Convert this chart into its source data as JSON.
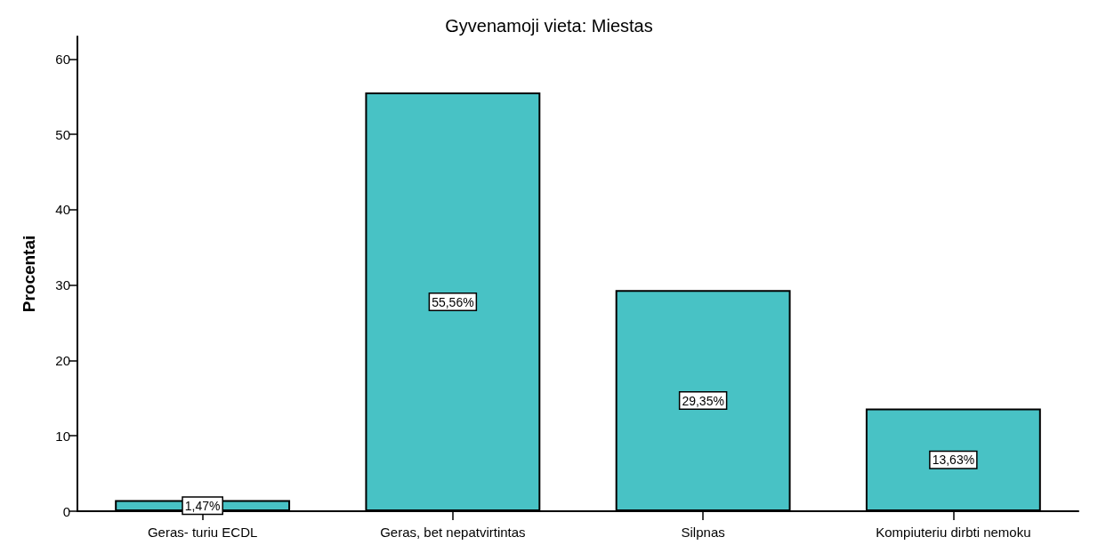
{
  "chart_data": {
    "type": "bar",
    "title": "Gyvenamoji vieta: Miestas",
    "ylabel": "Procentai",
    "categories": [
      "Geras- turiu ECDL",
      "Geras, bet nepatvirtintas",
      "Silpnas",
      "Kompiuteriu dirbti nemoku"
    ],
    "values": [
      1.47,
      55.56,
      29.35,
      13.63
    ],
    "value_labels": [
      "1,47%",
      "55,56%",
      "29,35%",
      "13,63%"
    ],
    "color": "#48c2c5",
    "ylim": [
      0,
      63
    ],
    "yticks": [
      0,
      10,
      20,
      30,
      40,
      50,
      60
    ],
    "grid": false
  }
}
